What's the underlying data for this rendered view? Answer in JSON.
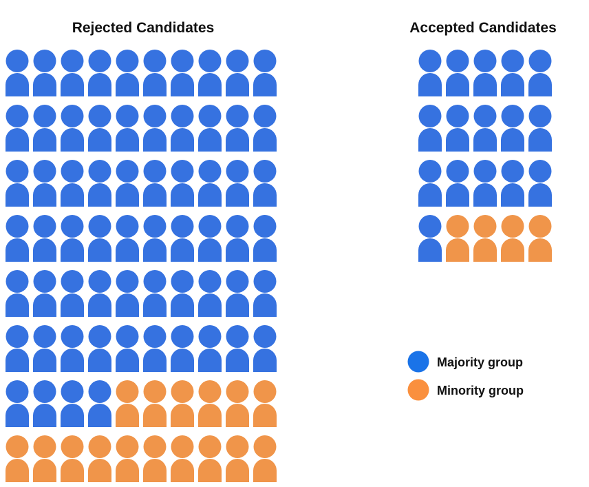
{
  "chart_data": [
    {
      "type": "pictogram",
      "title": "Rejected Candidates",
      "columns": 10,
      "series": [
        {
          "name": "Majority group",
          "value": 64
        },
        {
          "name": "Minority group",
          "value": 16
        }
      ]
    },
    {
      "type": "pictogram",
      "title": "Accepted Candidates",
      "columns": 5,
      "series": [
        {
          "name": "Majority group",
          "value": 16
        },
        {
          "name": "Minority group",
          "value": 4
        }
      ]
    }
  ],
  "legend": {
    "position": "right",
    "items": [
      {
        "label": "Majority group",
        "color": "#1a73e8"
      },
      {
        "label": "Minority group",
        "color": "#fa903e"
      }
    ]
  },
  "colors": {
    "majority_icon": "#3672e0",
    "minority_icon": "#f0954a"
  }
}
